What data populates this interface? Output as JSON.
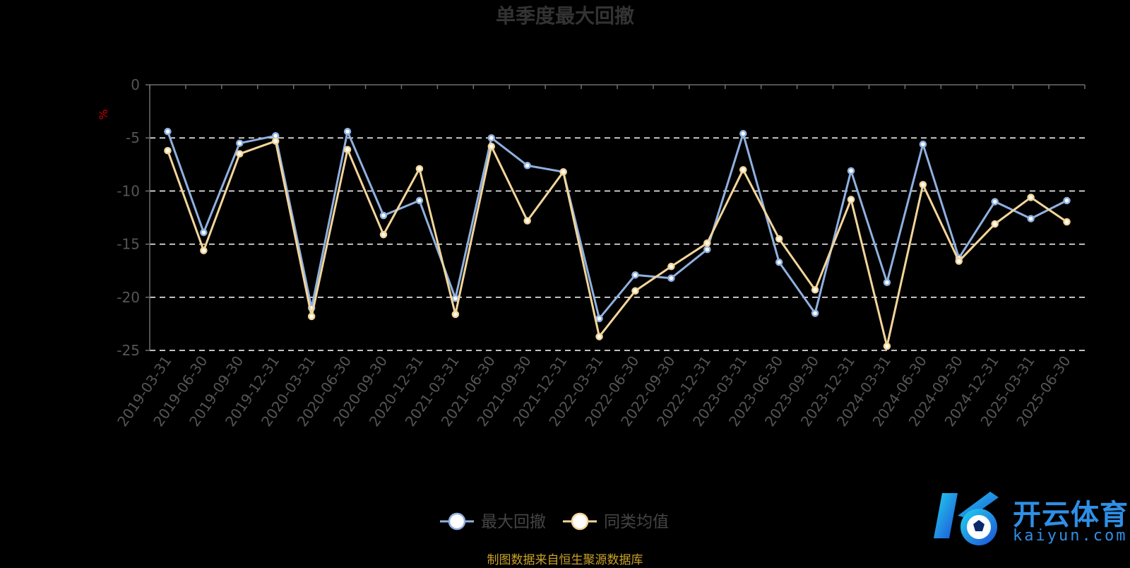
{
  "chart_data": {
    "type": "line",
    "title": "单季度最大回撤",
    "ylabel": "%",
    "ylim": [
      -25,
      0
    ],
    "yticks": [
      0,
      -5,
      -10,
      -15,
      -20,
      -25
    ],
    "grid": true,
    "legend_position": "bottom",
    "categories": [
      "2019-03-31",
      "2019-06-30",
      "2019-09-30",
      "2019-12-31",
      "2020-03-31",
      "2020-06-30",
      "2020-09-30",
      "2020-12-31",
      "2021-03-31",
      "2021-06-30",
      "2021-09-30",
      "2021-12-31",
      "2022-03-31",
      "2022-06-30",
      "2022-09-30",
      "2022-12-31",
      "2023-03-31",
      "2023-06-30",
      "2023-09-30",
      "2023-12-31",
      "2024-03-31",
      "2024-06-30",
      "2024-09-30",
      "2024-12-31",
      "2025-03-31",
      "2025-06-30"
    ],
    "series": [
      {
        "name": "最大回撤",
        "color": "#8fb0e0",
        "values": [
          -4.4,
          -13.9,
          -5.5,
          -4.8,
          -21.0,
          -4.4,
          -12.3,
          -10.9,
          -20.1,
          -5.0,
          -7.6,
          -8.2,
          -22.0,
          -17.9,
          -18.2,
          -15.5,
          -4.6,
          -16.7,
          -21.5,
          -8.1,
          -18.6,
          -5.6,
          -16.3,
          -11.0,
          -12.6,
          -10.9
        ]
      },
      {
        "name": "同类均值",
        "color": "#f3d59a",
        "values": [
          -6.2,
          -15.6,
          -6.5,
          -5.3,
          -21.8,
          -6.1,
          -14.1,
          -7.9,
          -21.6,
          -5.8,
          -12.8,
          -8.2,
          -23.7,
          -19.4,
          -17.1,
          -14.9,
          -8.0,
          -14.5,
          -19.3,
          -10.8,
          -24.6,
          -9.4,
          -16.6,
          -13.1,
          -10.6,
          -12.9
        ]
      }
    ]
  },
  "source_note": "制图数据来自恒生聚源数据库",
  "watermark": {
    "brand": "开云体育",
    "domain": "kaiyun.com"
  }
}
